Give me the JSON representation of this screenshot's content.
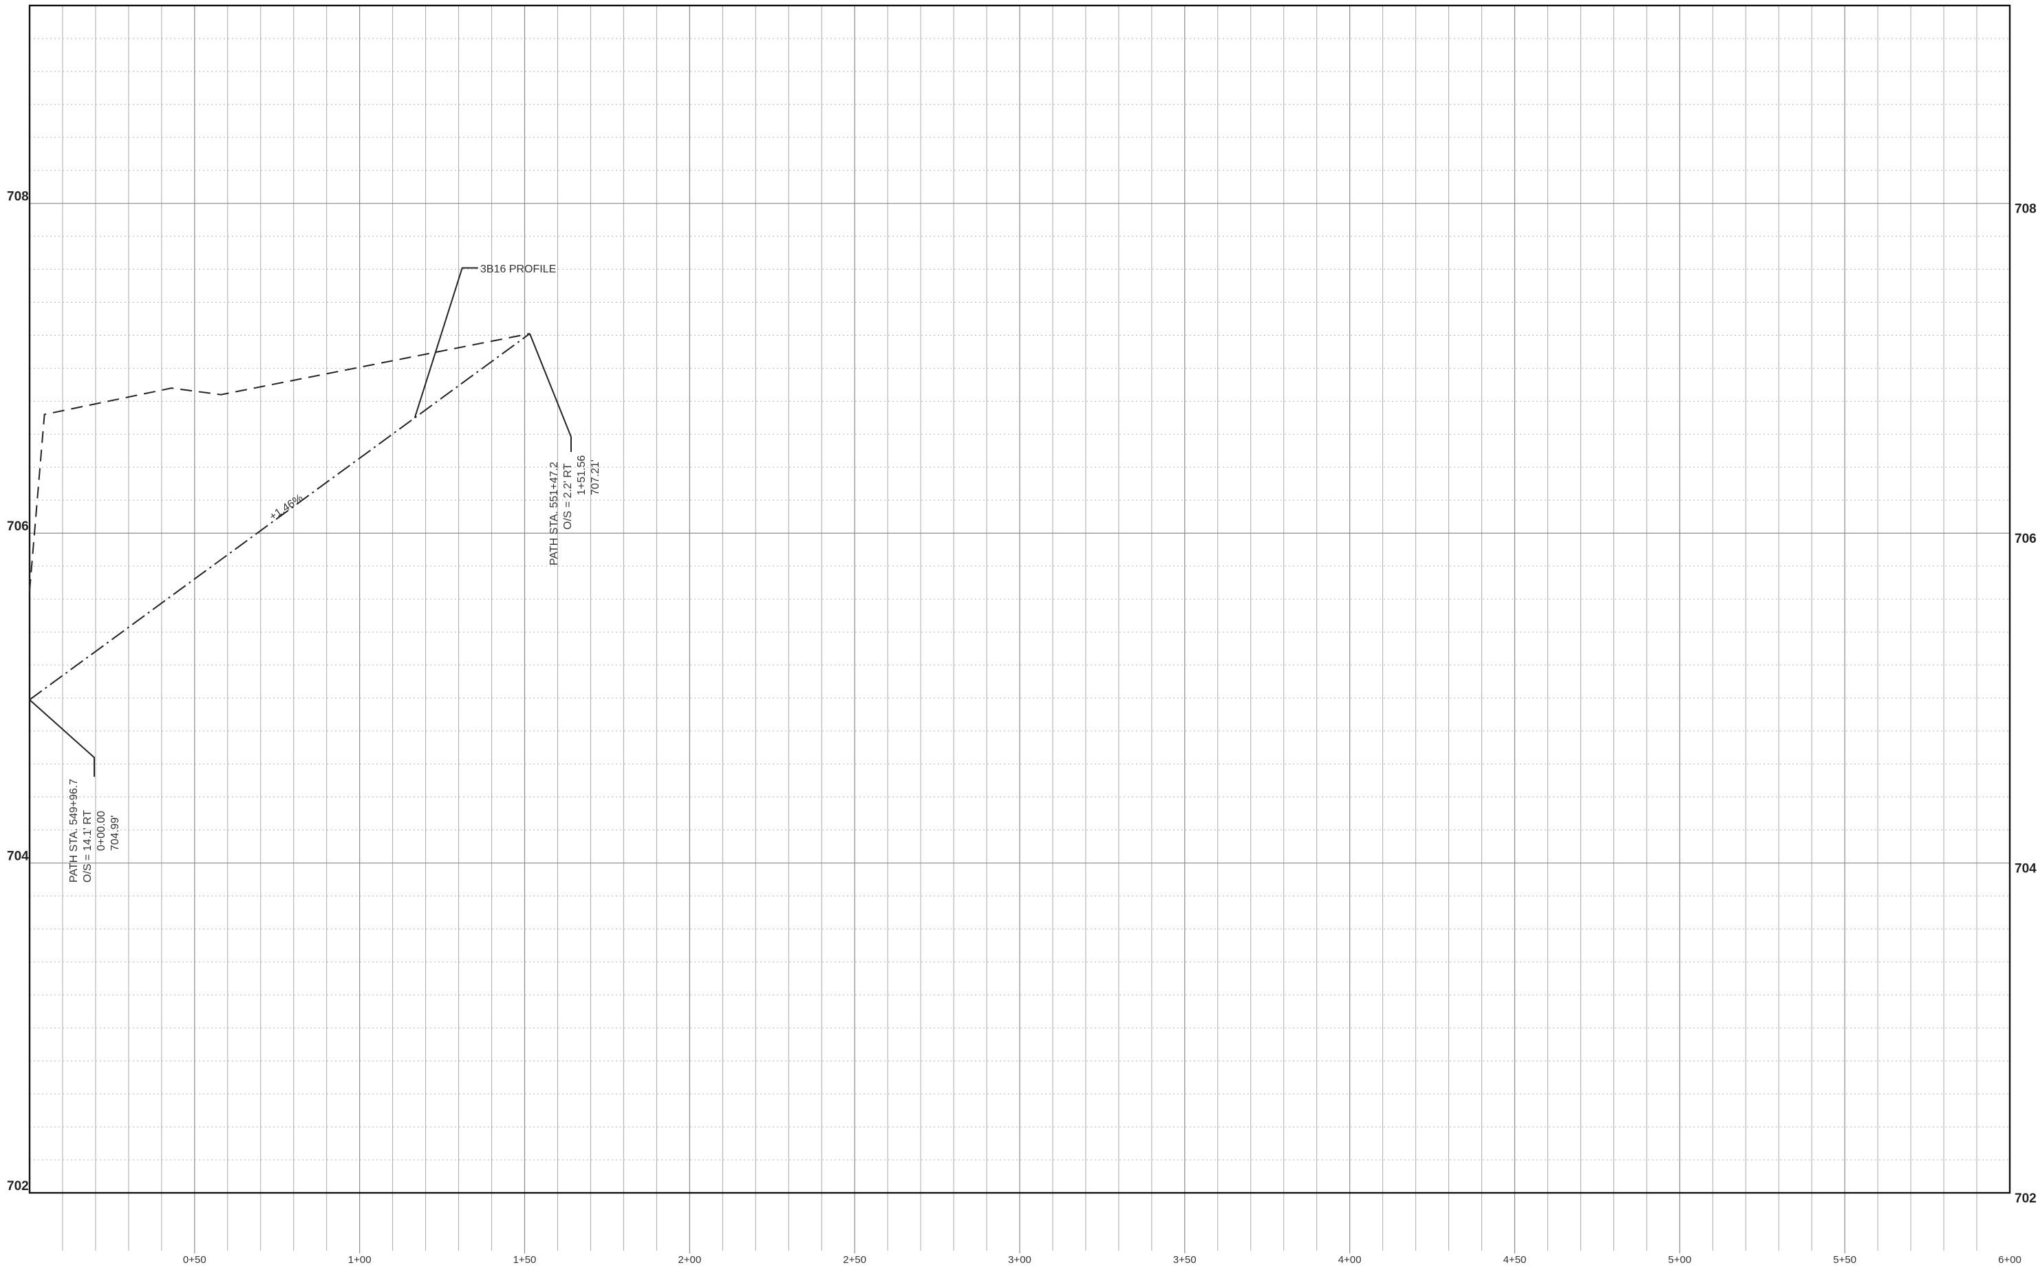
{
  "axes": {
    "elevation_labels": [
      "702",
      "704",
      "706",
      "708"
    ],
    "station_labels": [
      "0+50",
      "1+00",
      "1+50",
      "2+00",
      "2+50",
      "3+00",
      "3+50",
      "4+00",
      "4+50",
      "5+00",
      "5+50",
      "6+00"
    ]
  },
  "annotations": {
    "profile_callout": "3B16 PROFILE",
    "grade": "+1.46%",
    "start_point": {
      "line1": "PATH STA. 549+96.7",
      "line2": "O/S = 14.1' RT",
      "line3": "0+00.00",
      "line4": "704.99'"
    },
    "end_point": {
      "line1": "PATH STA. 551+47.2",
      "line2": "O/S = 2.2' RT",
      "line3": "1+51.56",
      "line4": "707.21'"
    }
  },
  "chart_data": {
    "type": "line",
    "x_unit": "station (ft)",
    "y_unit": "elevation (ft)",
    "xlim": [
      0,
      600
    ],
    "ylim": [
      702,
      709.2
    ],
    "grid": true,
    "series": [
      {
        "name": "3B16 PROFILE",
        "style": "dash-dot",
        "x": [
          0,
          151.56
        ],
        "y": [
          704.99,
          707.21
        ]
      },
      {
        "style": "dashed",
        "x": [
          0,
          4.5,
          43,
          58,
          151.56
        ],
        "y": [
          705.65,
          706.72,
          706.88,
          706.84,
          707.21
        ]
      }
    ]
  }
}
